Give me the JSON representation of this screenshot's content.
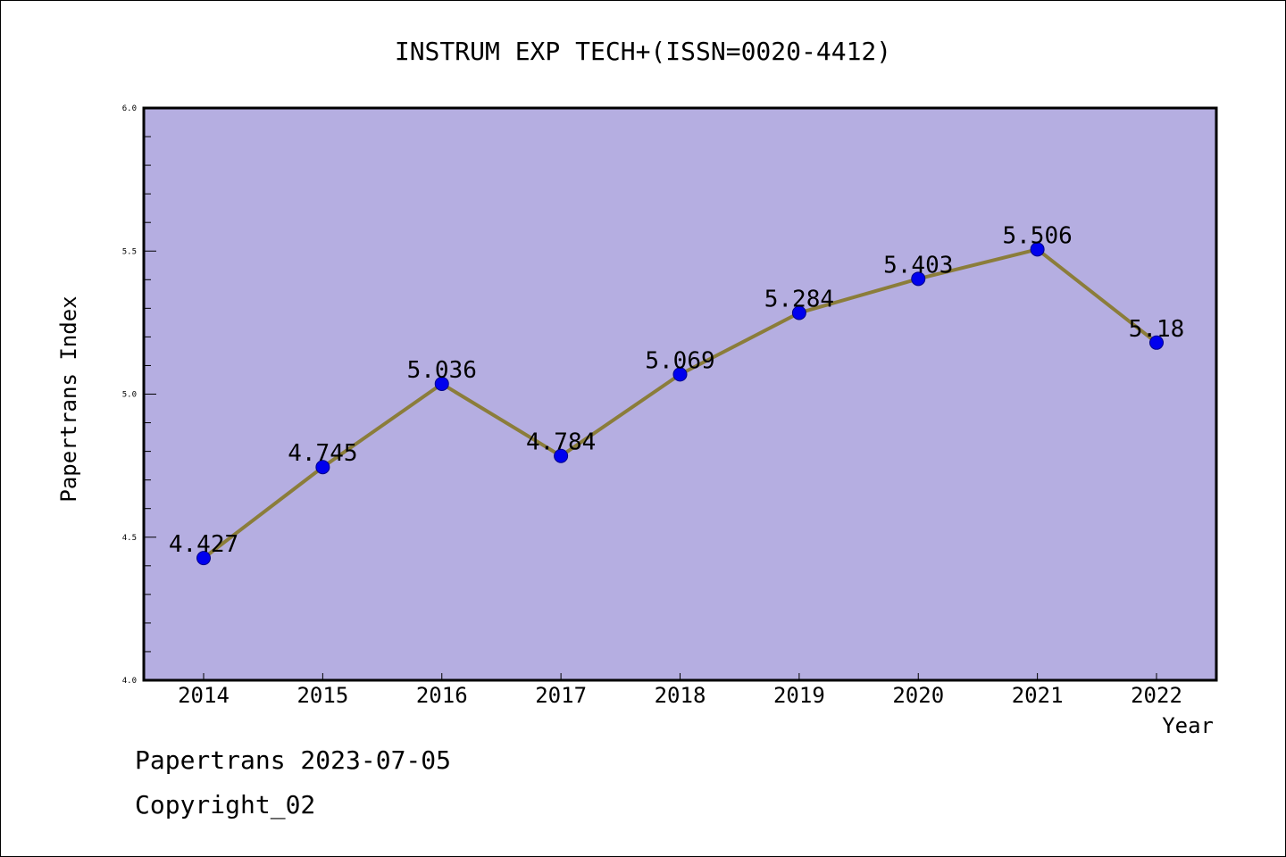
{
  "chart_data": {
    "type": "line",
    "title": "INSTRUM EXP TECH+(ISSN=0020-4412)",
    "xlabel": "Year",
    "ylabel": "Papertrans Index",
    "categories": [
      "2014",
      "2015",
      "2016",
      "2017",
      "2018",
      "2019",
      "2020",
      "2021",
      "2022"
    ],
    "values": [
      4.427,
      4.745,
      5.036,
      4.784,
      5.069,
      5.284,
      5.403,
      5.506,
      5.18
    ],
    "data_labels": [
      "4.427",
      "4.745",
      "5.036",
      "4.784",
      "5.069",
      "5.284",
      "5.403",
      "5.506",
      "5.18"
    ],
    "ylim": [
      4.0,
      6.0
    ],
    "yticks": [
      "4.0",
      "4.5",
      "5.0",
      "5.5",
      "6.0"
    ],
    "grid": false,
    "legend": "none",
    "colors": {
      "plot_background": "#b5aee1",
      "line": "#8b7d3a",
      "marker_fill": "#0000ee",
      "marker_edge": "#00008b"
    }
  },
  "footer": {
    "line1": "Papertrans 2023-07-05",
    "line2": "Copyright_02"
  }
}
